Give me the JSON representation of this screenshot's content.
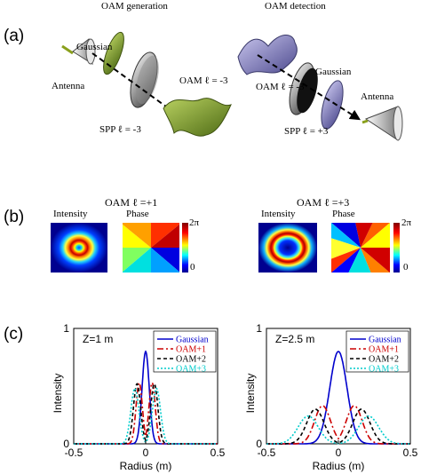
{
  "panel_a": {
    "label": "(a)",
    "generation": {
      "title": "OAM generation",
      "gaussian": "Gaussian",
      "antenna": "Antenna",
      "oam": "OAM ℓ = -3",
      "spp": "SPP ℓ = -3"
    },
    "detection": {
      "title": "OAM detection",
      "gaussian": "Gaussian",
      "oam": "OAM ℓ = -3",
      "antenna": "Antenna",
      "spp": "SPP ℓ = +3"
    }
  },
  "panel_b": {
    "label": "(b)",
    "left": {
      "title": "OAM ℓ =+1",
      "intensity": "Intensity",
      "phase": "Phase"
    },
    "right": {
      "title": "OAM  ℓ =+3",
      "intensity": "Intensity",
      "phase": "Phase"
    },
    "cbar_top": "2π",
    "cbar_bottom": "0"
  },
  "panel_c": {
    "label": "(c)"
  },
  "colors": {
    "gaussian": "#0000cc",
    "oam1": "#cc0000",
    "oam2": "#000000",
    "oam3": "#00cccc",
    "green_plate": "#7a9b2e",
    "purple_plate": "#7a78b8"
  },
  "chart_data": [
    {
      "type": "line",
      "annotation": "Z=1 m",
      "xlabel": "Radius (m)",
      "ylabel": "Intensity",
      "xlim": [
        -0.5,
        0.5
      ],
      "ylim": [
        0,
        1
      ],
      "xticks": [
        "-0.5",
        "0",
        "0.5"
      ],
      "yticks": [
        "0",
        "1"
      ],
      "legend_position": "top-right",
      "series": [
        {
          "name": "Gaussian",
          "peak": 0.8,
          "r0": 0.0,
          "width": 0.025
        },
        {
          "name": "OAM+1",
          "peak": 0.53,
          "r0": 0.045,
          "width": 0.022
        },
        {
          "name": "OAM+2",
          "peak": 0.52,
          "r0": 0.06,
          "width": 0.025
        },
        {
          "name": "OAM+3",
          "peak": 0.48,
          "r0": 0.075,
          "width": 0.028
        }
      ]
    },
    {
      "type": "line",
      "annotation": "Z=2.5 m",
      "xlabel": "Radius (m)",
      "ylabel": "Intensity",
      "xlim": [
        -0.5,
        0.5
      ],
      "ylim": [
        0,
        1
      ],
      "xticks": [
        "-0.5",
        "0",
        "0.5"
      ],
      "yticks": [
        "0",
        "1"
      ],
      "legend_position": "top-right",
      "series": [
        {
          "name": "Gaussian",
          "peak": 0.8,
          "r0": 0.0,
          "width": 0.06
        },
        {
          "name": "OAM+1",
          "peak": 0.33,
          "r0": 0.11,
          "width": 0.055
        },
        {
          "name": "OAM+2",
          "peak": 0.3,
          "r0": 0.16,
          "width": 0.06
        },
        {
          "name": "OAM+3",
          "peak": 0.24,
          "r0": 0.21,
          "width": 0.07
        }
      ]
    }
  ]
}
